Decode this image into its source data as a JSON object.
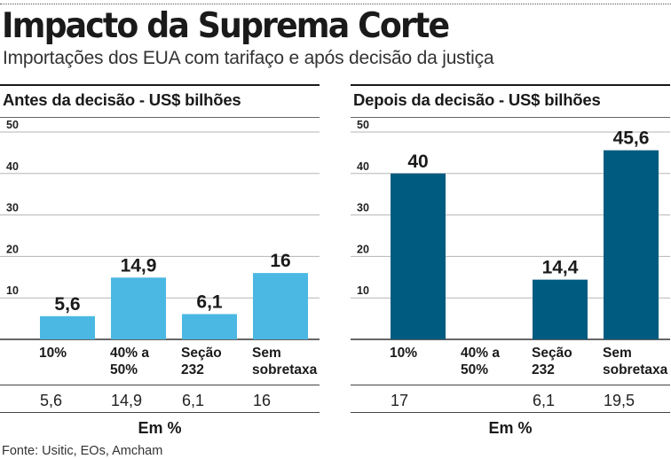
{
  "title": "Impacto da Suprema Corte",
  "subtitle": "Importações dos EUA com tarifaço e após decisão da justiça",
  "source": "Fonte: Usitic, EOs, Amcham",
  "colors": {
    "before_bar": "#4bb8e3",
    "after_bar": "#005b80",
    "grid": "#b5b5b5",
    "axis": "#333333"
  },
  "chart_data": [
    {
      "type": "bar",
      "title": "Antes da decisão - US$ bilhões",
      "categories": [
        "10%",
        "40% a 50%",
        "Seção 232",
        "Sem sobretaxa"
      ],
      "category_lines": [
        [
          "10%"
        ],
        [
          "40% a",
          "50%"
        ],
        [
          "Seção",
          "232"
        ],
        [
          "Sem",
          "sobretaxa"
        ]
      ],
      "values": [
        5.6,
        14.9,
        6.1,
        16
      ],
      "value_labels": [
        "5,6",
        "14,9",
        "6,1",
        "16"
      ],
      "ylim": [
        0,
        50
      ],
      "yticks": [
        10,
        20,
        30,
        40,
        50
      ],
      "bottom_row_label": "Em %",
      "bottom_row_values": [
        "5,6",
        "14,9",
        "6,1",
        "16"
      ]
    },
    {
      "type": "bar",
      "title": "Depois da decisão - US$ bilhões",
      "categories": [
        "10%",
        "40% a 50%",
        "Seção 232",
        "Sem sobretaxa"
      ],
      "category_lines": [
        [
          "10%"
        ],
        [
          "40% a",
          "50%"
        ],
        [
          "Seção",
          "232"
        ],
        [
          "Sem",
          "sobretaxa"
        ]
      ],
      "values": [
        40,
        null,
        14.4,
        45.6
      ],
      "value_labels": [
        "40",
        "",
        "14,4",
        "45,6"
      ],
      "ylim": [
        0,
        50
      ],
      "yticks": [
        10,
        20,
        30,
        40,
        50
      ],
      "bottom_row_label": "Em %",
      "bottom_row_values": [
        "17",
        "",
        "6,1",
        "19,5"
      ]
    }
  ]
}
